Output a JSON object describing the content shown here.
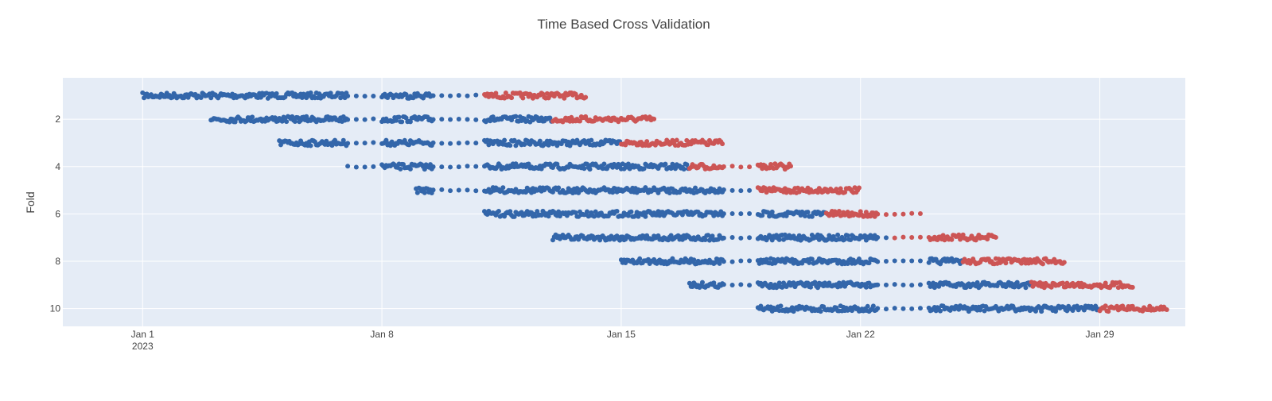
{
  "chart_data": {
    "type": "scatter",
    "title": "Time Based Cross Validation",
    "xlabel": "",
    "ylabel": "Fold",
    "x_tick_labels": [
      {
        "date": "2023-01-01",
        "label": "Jan 1",
        "sublabel": "2023"
      },
      {
        "date": "2023-01-08",
        "label": "Jan 8"
      },
      {
        "date": "2023-01-15",
        "label": "Jan 15"
      },
      {
        "date": "2023-01-22",
        "label": "Jan 22"
      },
      {
        "date": "2023-01-29",
        "label": "Jan 29"
      }
    ],
    "y_tick_labels": [
      "2",
      "4",
      "6",
      "8",
      "10"
    ],
    "y_ticks": [
      2,
      4,
      6,
      8,
      10
    ],
    "xlim": [
      "2022-12-29 16:00",
      "2023-01-31 12:00"
    ],
    "ylim": [
      10.75,
      0.25
    ],
    "y_reversed": true,
    "grid": true,
    "legend": "none",
    "colors": {
      "train": "#3366aa",
      "test": "#cc5555",
      "plot_bg": "#e5ecf6",
      "grid": "#ffffff"
    },
    "series": [
      {
        "role": "train",
        "fold": 1,
        "start": "2023-01-01",
        "end": "2023-01-11"
      },
      {
        "role": "test",
        "fold": 1,
        "start": "2023-01-11",
        "end": "2023-01-14"
      },
      {
        "role": "train",
        "fold": 2,
        "start": "2023-01-03",
        "end": "2023-01-13"
      },
      {
        "role": "test",
        "fold": 2,
        "start": "2023-01-13",
        "end": "2023-01-16"
      },
      {
        "role": "train",
        "fold": 3,
        "start": "2023-01-05",
        "end": "2023-01-15"
      },
      {
        "role": "test",
        "fold": 3,
        "start": "2023-01-15",
        "end": "2023-01-18"
      },
      {
        "role": "train",
        "fold": 4,
        "start": "2023-01-07",
        "end": "2023-01-17"
      },
      {
        "role": "test",
        "fold": 4,
        "start": "2023-01-17",
        "end": "2023-01-20"
      },
      {
        "role": "train",
        "fold": 5,
        "start": "2023-01-09",
        "end": "2023-01-19"
      },
      {
        "role": "test",
        "fold": 5,
        "start": "2023-01-19",
        "end": "2023-01-22"
      },
      {
        "role": "train",
        "fold": 6,
        "start": "2023-01-11",
        "end": "2023-01-21"
      },
      {
        "role": "test",
        "fold": 6,
        "start": "2023-01-21",
        "end": "2023-01-24"
      },
      {
        "role": "train",
        "fold": 7,
        "start": "2023-01-13",
        "end": "2023-01-23"
      },
      {
        "role": "test",
        "fold": 7,
        "start": "2023-01-23",
        "end": "2023-01-26"
      },
      {
        "role": "train",
        "fold": 8,
        "start": "2023-01-15",
        "end": "2023-01-25"
      },
      {
        "role": "test",
        "fold": 8,
        "start": "2023-01-25",
        "end": "2023-01-28"
      },
      {
        "role": "train",
        "fold": 9,
        "start": "2023-01-17",
        "end": "2023-01-27"
      },
      {
        "role": "test",
        "fold": 9,
        "start": "2023-01-27",
        "end": "2023-01-30"
      },
      {
        "role": "train",
        "fold": 10,
        "start": "2023-01-19",
        "end": "2023-01-29"
      },
      {
        "role": "test",
        "fold": 10,
        "start": "2023-01-29",
        "end": "2023-01-31"
      }
    ]
  }
}
